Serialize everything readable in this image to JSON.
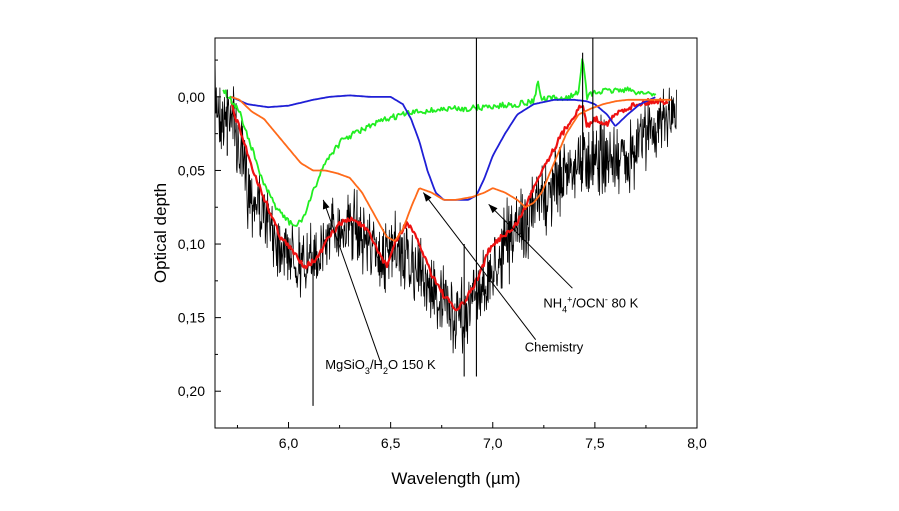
{
  "chart_data": {
    "type": "line",
    "title": "",
    "xlabel_parts": [
      "Wavelength (",
      "µ",
      "m)"
    ],
    "ylabel": "Optical depth",
    "xlim": [
      5.64,
      8.0
    ],
    "ylim": [
      0.225,
      -0.04
    ],
    "y_inverted": true,
    "grid": false,
    "legend": "none",
    "x_ticks": [
      6.0,
      6.5,
      7.0,
      7.5,
      8.0
    ],
    "x_tick_labels": [
      "6,0",
      "6,5",
      "7,0",
      "7,5",
      "8,0"
    ],
    "y_ticks": [
      0.0,
      0.05,
      0.1,
      0.15,
      0.2
    ],
    "y_tick_labels": [
      "0,00",
      "0,05",
      "0,10",
      "0,15",
      "0,20"
    ],
    "series": [
      {
        "color": "#000000",
        "style": "noisy-observed",
        "noise_amplitude": 0.022,
        "x": [
          5.64,
          5.68,
          5.72,
          5.76,
          5.8,
          5.86,
          5.92,
          5.98,
          6.04,
          6.1,
          6.16,
          6.22,
          6.28,
          6.34,
          6.4,
          6.46,
          6.52,
          6.58,
          6.64,
          6.7,
          6.76,
          6.82,
          6.88,
          6.94,
          7.0,
          7.06,
          7.12,
          7.18,
          7.24,
          7.3,
          7.36,
          7.42,
          7.48,
          7.54,
          7.6,
          7.66,
          7.72,
          7.78,
          7.84,
          7.9
        ],
        "y": [
          0.0,
          0.015,
          0.005,
          0.04,
          0.06,
          0.075,
          0.09,
          0.1,
          0.11,
          0.115,
          0.1,
          0.09,
          0.085,
          0.09,
          0.1,
          0.11,
          0.105,
          0.11,
          0.12,
          0.13,
          0.14,
          0.15,
          0.145,
          0.13,
          0.12,
          0.1,
          0.09,
          0.08,
          0.07,
          0.06,
          0.05,
          0.045,
          0.04,
          0.04,
          0.045,
          0.04,
          0.03,
          0.02,
          0.015,
          0.01
        ]
      },
      {
        "color": "#ee1111",
        "style": "red-fit",
        "x": [
          5.72,
          5.78,
          5.84,
          5.9,
          5.96,
          6.02,
          6.08,
          6.14,
          6.2,
          6.26,
          6.32,
          6.38,
          6.44,
          6.48,
          6.52,
          6.58,
          6.64,
          6.7,
          6.76,
          6.82,
          6.86,
          6.92,
          6.98,
          7.04,
          7.1,
          7.16,
          7.22,
          7.28,
          7.34,
          7.4,
          7.44,
          7.46,
          7.5,
          7.56,
          7.62,
          7.7,
          7.78,
          7.86
        ],
        "y": [
          0.005,
          0.03,
          0.055,
          0.075,
          0.095,
          0.105,
          0.115,
          0.11,
          0.095,
          0.085,
          0.083,
          0.09,
          0.105,
          0.115,
          0.1,
          0.085,
          0.1,
          0.12,
          0.135,
          0.145,
          0.14,
          0.125,
          0.105,
          0.095,
          0.09,
          0.075,
          0.055,
          0.04,
          0.025,
          0.012,
          0.005,
          0.02,
          0.015,
          0.018,
          0.01,
          0.005,
          0.003,
          0.003
        ]
      },
      {
        "color": "#22ee22",
        "style": "green-mgsio3",
        "x": [
          5.68,
          5.76,
          5.82,
          5.88,
          5.94,
          6.0,
          6.04,
          6.08,
          6.12,
          6.16,
          6.2,
          6.26,
          6.32,
          6.4,
          6.48,
          6.56,
          6.64,
          6.72,
          6.8,
          6.88,
          6.96,
          7.04,
          7.12,
          7.2,
          7.22,
          7.24,
          7.3,
          7.36,
          7.42,
          7.44,
          7.46,
          7.5,
          7.56,
          7.64,
          7.72,
          7.8
        ],
        "y": [
          -0.005,
          0.01,
          0.035,
          0.06,
          0.075,
          0.085,
          0.088,
          0.08,
          0.065,
          0.05,
          0.04,
          0.03,
          0.025,
          0.02,
          0.015,
          0.012,
          0.01,
          0.009,
          0.008,
          0.008,
          0.007,
          0.006,
          0.005,
          0.003,
          -0.01,
          0.002,
          0.001,
          0.001,
          -0.003,
          -0.03,
          0.0,
          -0.003,
          -0.004,
          -0.005,
          -0.003,
          -0.002
        ]
      },
      {
        "color": "#1f1fd6",
        "style": "blue-nh4ocn",
        "x": [
          5.72,
          5.8,
          5.9,
          6.0,
          6.12,
          6.2,
          6.3,
          6.4,
          6.5,
          6.56,
          6.6,
          6.64,
          6.68,
          6.72,
          6.76,
          6.8,
          6.84,
          6.88,
          6.92,
          6.96,
          7.0,
          7.06,
          7.12,
          7.2,
          7.3,
          7.4,
          7.46,
          7.5,
          7.56,
          7.6,
          7.66,
          7.72,
          7.8
        ],
        "y": [
          0.0,
          0.005,
          0.007,
          0.006,
          0.002,
          0.0,
          -0.001,
          0.0,
          0.0,
          0.005,
          0.015,
          0.03,
          0.05,
          0.065,
          0.07,
          0.07,
          0.07,
          0.07,
          0.067,
          0.055,
          0.04,
          0.025,
          0.012,
          0.005,
          0.002,
          0.002,
          0.003,
          0.005,
          0.012,
          0.02,
          0.012,
          0.005,
          0.0
        ]
      },
      {
        "color": "#ff6a1a",
        "style": "orange-chemistry",
        "x": [
          5.72,
          5.76,
          5.82,
          5.88,
          5.94,
          6.0,
          6.06,
          6.12,
          6.18,
          6.24,
          6.3,
          6.36,
          6.4,
          6.44,
          6.48,
          6.52,
          6.56,
          6.6,
          6.64,
          6.7,
          6.76,
          6.82,
          6.9,
          6.96,
          7.0,
          7.06,
          7.12,
          7.16,
          7.2,
          7.24,
          7.3,
          7.36,
          7.42,
          7.48,
          7.54,
          7.6,
          7.66,
          7.72,
          7.8,
          7.88
        ],
        "y": [
          0.0,
          0.002,
          0.01,
          0.015,
          0.025,
          0.035,
          0.045,
          0.05,
          0.05,
          0.052,
          0.055,
          0.065,
          0.075,
          0.085,
          0.095,
          0.098,
          0.09,
          0.075,
          0.062,
          0.065,
          0.07,
          0.07,
          0.068,
          0.065,
          0.062,
          0.065,
          0.07,
          0.075,
          0.072,
          0.065,
          0.045,
          0.025,
          0.012,
          0.008,
          0.005,
          0.003,
          0.002,
          0.002,
          0.002,
          0.002
        ]
      }
    ],
    "spikes": [
      {
        "x": 6.12,
        "y0": 0.115,
        "y1": 0.21
      },
      {
        "x": 6.92,
        "y0": -0.04,
        "y1": 0.19
      },
      {
        "x": 7.44,
        "y0": -0.03,
        "y1": 0.05
      },
      {
        "x": 7.49,
        "y0": -0.04,
        "y1": 0.06
      },
      {
        "x": 6.86,
        "y0": 0.1,
        "y1": 0.19
      },
      {
        "x": 5.7,
        "y0": -0.005,
        "y1": 0.04
      }
    ],
    "annotations": [
      {
        "text_parts": [
          [
            "MgSiO",
            0
          ],
          [
            "3",
            -1
          ],
          [
            "/H",
            0
          ],
          [
            "2",
            -1
          ],
          [
            "O 150 K",
            0
          ]
        ],
        "label_x": 6.45,
        "label_y": 0.185,
        "anchor": "middle",
        "line_from": [
          6.45,
          0.18
        ],
        "arrow_to": [
          6.17,
          0.07
        ]
      },
      {
        "text_parts": [
          [
            "Chemistry",
            0
          ]
        ],
        "label_x": 7.3,
        "label_y": 0.173,
        "anchor": "middle",
        "line_from": [
          7.21,
          0.165
        ],
        "arrow_to": [
          6.66,
          0.065
        ]
      },
      {
        "text_parts": [
          [
            "NH",
            0
          ],
          [
            "4",
            -1
          ],
          [
            "+",
            1
          ],
          [
            "/OCN",
            0
          ],
          [
            "-",
            1
          ],
          [
            " 80 K",
            0
          ]
        ],
        "label_x": 7.48,
        "label_y": 0.143,
        "anchor": "middle",
        "line_from": [
          7.39,
          0.13
        ],
        "arrow_to": [
          6.98,
          0.073
        ]
      }
    ]
  }
}
